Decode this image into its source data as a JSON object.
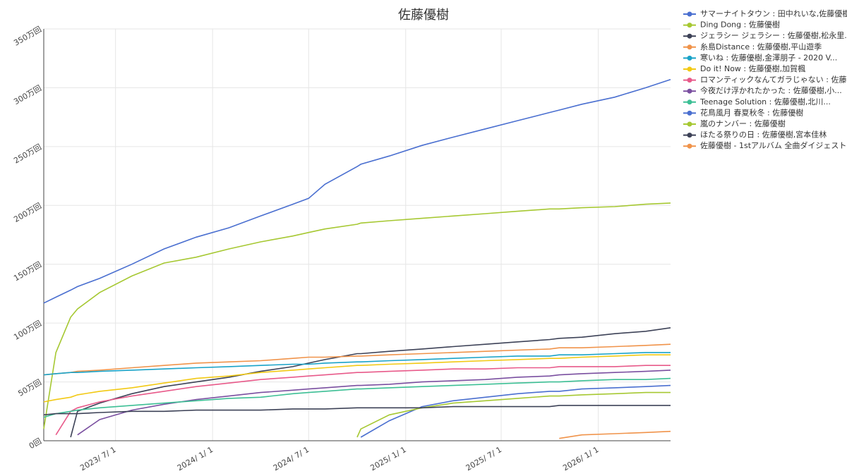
{
  "chart_data": {
    "type": "line",
    "title": "佐藤優樹",
    "x": [
      "2023-02-15",
      "2023-03-10",
      "2023-04-07",
      "2023-04-20",
      "2023-06-01",
      "2023-08-01",
      "2023-10-01",
      "2023-12-01",
      "2024-02-01",
      "2024-04-01",
      "2024-06-01",
      "2024-07-01",
      "2024-08-01",
      "2024-10-01",
      "2024-10-08",
      "2024-12-01",
      "2025-02-01",
      "2025-04-01",
      "2025-06-01",
      "2025-08-01",
      "2025-10-01",
      "2025-10-19",
      "2025-12-01",
      "2026-02-01",
      "2026-04-01",
      "2026-05-18"
    ],
    "xlim": [
      "2023-02-15",
      "2026-05-18"
    ],
    "xticks": [
      {
        "value": "2023-07-01",
        "label": "2023/ 7/ 1"
      },
      {
        "value": "2024-01-01",
        "label": "2024/ 1/ 1"
      },
      {
        "value": "2024-07-01",
        "label": "2024/ 7/ 1"
      },
      {
        "value": "2025-01-01",
        "label": "2025/ 1/ 1"
      },
      {
        "value": "2025-07-01",
        "label": "2025/ 7/ 1"
      },
      {
        "value": "2026-01-01",
        "label": "2026/ 1/ 1"
      }
    ],
    "ylim": [
      0,
      3500000
    ],
    "yticks": [
      {
        "value": 0,
        "label": "0回"
      },
      {
        "value": 500000,
        "label": "50万回"
      },
      {
        "value": 1000000,
        "label": "100万回"
      },
      {
        "value": 1500000,
        "label": "150万回"
      },
      {
        "value": 2000000,
        "label": "200万回"
      },
      {
        "value": 2500000,
        "label": "250万回"
      },
      {
        "value": 3000000,
        "label": "300万回"
      },
      {
        "value": 3500000,
        "label": "350万回"
      }
    ],
    "grid": true,
    "legend": "right",
    "series": [
      {
        "name": "サマーナイトタウン : 田中れいな,佐藤優樹",
        "color": "#4a6fd0",
        "values": [
          1170000,
          1220000,
          1280000,
          1310000,
          1380000,
          1500000,
          1630000,
          1730000,
          1810000,
          1910000,
          2010000,
          2060000,
          2180000,
          2330000,
          2350000,
          2420000,
          2510000,
          2580000,
          2650000,
          2720000,
          2790000,
          2810000,
          2860000,
          2920000,
          3000000,
          3070000
        ]
      },
      {
        "name": "Ding Dong : 佐藤優樹",
        "color": "#a6c832",
        "values": [
          100000,
          750000,
          1050000,
          1120000,
          1260000,
          1400000,
          1510000,
          1560000,
          1630000,
          1690000,
          1740000,
          1770000,
          1800000,
          1840000,
          1850000,
          1870000,
          1890000,
          1910000,
          1930000,
          1950000,
          1970000,
          1970000,
          1980000,
          1990000,
          2010000,
          2020000
        ]
      },
      {
        "name": "ジェラシー ジェラシー : 佐藤優樹,松永里...",
        "color": "#3d4257",
        "values": [
          null,
          null,
          30000,
          250000,
          320000,
          400000,
          460000,
          500000,
          540000,
          590000,
          630000,
          660000,
          690000,
          740000,
          740000,
          760000,
          780000,
          800000,
          820000,
          840000,
          860000,
          870000,
          880000,
          910000,
          930000,
          960000
        ]
      },
      {
        "name": "糸島Distance : 佐藤優樹,平山遊季",
        "color": "#f0934a",
        "values": [
          560000,
          570000,
          580000,
          590000,
          600000,
          620000,
          640000,
          660000,
          670000,
          680000,
          700000,
          710000,
          710000,
          720000,
          720000,
          730000,
          740000,
          750000,
          760000,
          770000,
          780000,
          790000,
          790000,
          800000,
          810000,
          820000
        ]
      },
      {
        "name": "寒いね : 佐藤優樹,金澤朋子 - 2020 V...",
        "color": "#1aa3c8",
        "values": [
          560000,
          570000,
          580000,
          580000,
          590000,
          600000,
          610000,
          620000,
          630000,
          640000,
          650000,
          650000,
          660000,
          670000,
          670000,
          680000,
          690000,
          700000,
          710000,
          720000,
          720000,
          730000,
          730000,
          740000,
          750000,
          750000
        ]
      },
      {
        "name": "Do it! Now : 佐藤優樹,加賀楓",
        "color": "#f2c914",
        "values": [
          330000,
          350000,
          370000,
          390000,
          420000,
          450000,
          490000,
          530000,
          550000,
          580000,
          600000,
          610000,
          620000,
          640000,
          640000,
          650000,
          660000,
          670000,
          680000,
          690000,
          700000,
          700000,
          710000,
          720000,
          730000,
          730000
        ]
      },
      {
        "name": "ロマンティックなんてガラじゃない : 佐藤...",
        "color": "#e85a8a",
        "values": [
          null,
          50000,
          250000,
          280000,
          330000,
          380000,
          420000,
          460000,
          490000,
          520000,
          540000,
          550000,
          560000,
          580000,
          580000,
          590000,
          600000,
          610000,
          610000,
          620000,
          620000,
          630000,
          630000,
          630000,
          640000,
          640000
        ]
      },
      {
        "name": "今夜だけ浮かれたかった : 佐藤優樹,小...",
        "color": "#7a4fa0",
        "values": [
          null,
          null,
          null,
          50000,
          180000,
          260000,
          310000,
          350000,
          380000,
          410000,
          430000,
          440000,
          450000,
          470000,
          470000,
          480000,
          500000,
          510000,
          520000,
          540000,
          550000,
          560000,
          570000,
          580000,
          590000,
          600000
        ]
      },
      {
        "name": "Teenage Solution : 佐藤優樹,北川...",
        "color": "#3dbf95",
        "values": [
          200000,
          230000,
          250000,
          260000,
          280000,
          300000,
          320000,
          340000,
          360000,
          370000,
          400000,
          410000,
          420000,
          440000,
          440000,
          450000,
          460000,
          470000,
          480000,
          490000,
          500000,
          500000,
          510000,
          520000,
          520000,
          530000
        ]
      },
      {
        "name": "花鳥風月 春夏秋冬 : 佐藤優樹",
        "color": "#4a6fd0",
        "values": [
          null,
          null,
          null,
          null,
          null,
          null,
          null,
          null,
          null,
          null,
          null,
          null,
          null,
          null,
          30000,
          170000,
          290000,
          340000,
          370000,
          400000,
          420000,
          420000,
          440000,
          450000,
          460000,
          470000
        ]
      },
      {
        "name": "嵐のナンバー : 佐藤優樹",
        "color": "#a6c832",
        "values": [
          null,
          null,
          null,
          null,
          null,
          null,
          null,
          null,
          null,
          null,
          null,
          null,
          null,
          30000,
          100000,
          220000,
          280000,
          320000,
          340000,
          360000,
          380000,
          380000,
          390000,
          400000,
          410000,
          410000
        ]
      },
      {
        "name": "ほたる祭りの日 : 佐藤優樹,宮本佳林",
        "color": "#3d4257",
        "values": [
          220000,
          230000,
          230000,
          230000,
          240000,
          250000,
          250000,
          260000,
          260000,
          260000,
          270000,
          270000,
          270000,
          280000,
          280000,
          280000,
          280000,
          290000,
          290000,
          290000,
          290000,
          300000,
          300000,
          300000,
          300000,
          300000
        ]
      },
      {
        "name": "佐藤優樹 - 1stアルバム 全曲ダイジェスト",
        "color": "#f0934a",
        "values": [
          null,
          null,
          null,
          null,
          null,
          null,
          null,
          null,
          null,
          null,
          null,
          null,
          null,
          null,
          null,
          null,
          null,
          null,
          null,
          null,
          null,
          20000,
          50000,
          60000,
          70000,
          80000
        ]
      }
    ]
  }
}
